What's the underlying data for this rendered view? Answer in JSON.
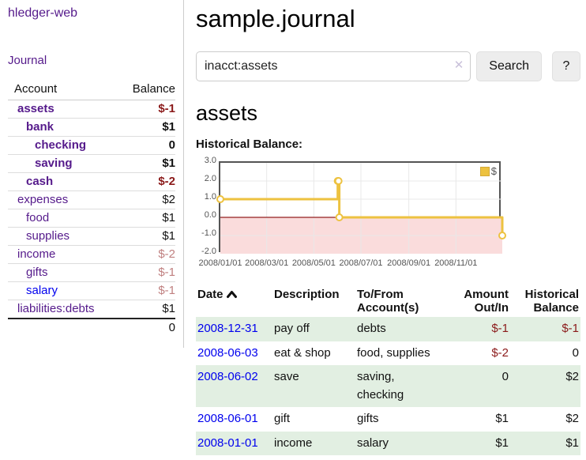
{
  "app": {
    "brand": "hledger-web",
    "nav_journal": "Journal"
  },
  "sidebar": {
    "columns": {
      "account": "Account",
      "balance": "Balance"
    },
    "accounts": [
      {
        "name": "assets",
        "depth": 1,
        "bold": true,
        "link_tone": "purple",
        "balance": "$-1",
        "balance_tone": "neg"
      },
      {
        "name": "bank",
        "depth": 2,
        "bold": true,
        "link_tone": "purple",
        "balance": "$1",
        "balance_tone": "pos"
      },
      {
        "name": "checking",
        "depth": 3,
        "bold": true,
        "link_tone": "purple",
        "balance": "0",
        "balance_tone": "pos"
      },
      {
        "name": "saving",
        "depth": 3,
        "bold": true,
        "link_tone": "purple",
        "balance": "$1",
        "balance_tone": "pos"
      },
      {
        "name": "cash",
        "depth": 2,
        "bold": true,
        "link_tone": "purple",
        "balance": "$-2",
        "balance_tone": "neg"
      },
      {
        "name": "expenses",
        "depth": 1,
        "bold": false,
        "link_tone": "purple",
        "balance": "$2",
        "balance_tone": "pos"
      },
      {
        "name": "food",
        "depth": 2,
        "bold": false,
        "link_tone": "purple",
        "balance": "$1",
        "balance_tone": "pos"
      },
      {
        "name": "supplies",
        "depth": 2,
        "bold": false,
        "link_tone": "purple",
        "balance": "$1",
        "balance_tone": "pos"
      },
      {
        "name": "income",
        "depth": 1,
        "bold": false,
        "link_tone": "purple",
        "balance": "$-2",
        "balance_tone": "neg-soft"
      },
      {
        "name": "gifts",
        "depth": 2,
        "bold": false,
        "link_tone": "purple",
        "balance": "$-1",
        "balance_tone": "neg-soft"
      },
      {
        "name": "salary",
        "depth": 2,
        "bold": false,
        "link_tone": "blue",
        "balance": "$-1",
        "balance_tone": "neg-soft"
      },
      {
        "name": "liabilities:debts",
        "depth": 1,
        "bold": false,
        "link_tone": "purple",
        "balance": "$1",
        "balance_tone": "pos"
      }
    ],
    "total": "0"
  },
  "main": {
    "title": "sample.journal",
    "search": {
      "value": "inacct:assets",
      "clear_icon": "✕",
      "button_label": "Search",
      "help_label": "?"
    },
    "account_heading": "assets",
    "chart_label": "Historical Balance:"
  },
  "chart_data": {
    "type": "line",
    "title": "Historical Balance",
    "step": true,
    "x_range_days": [
      0,
      365
    ],
    "ylim": [
      -2,
      3
    ],
    "y_ticks": [
      3.0,
      2.0,
      1.0,
      0.0,
      -1.0,
      -2.0
    ],
    "x_ticks": [
      {
        "label": "2008/01/01",
        "day": 0
      },
      {
        "label": "2008/03/01",
        "day": 60
      },
      {
        "label": "2008/05/01",
        "day": 121
      },
      {
        "label": "2008/07/01",
        "day": 182
      },
      {
        "label": "2008/09/01",
        "day": 244
      },
      {
        "label": "2008/11/01",
        "day": 305
      }
    ],
    "series": [
      {
        "name": "$",
        "color": "#edc240",
        "points": [
          {
            "date": "2008-01-01",
            "day": 0,
            "value": 1
          },
          {
            "date": "2008-06-01",
            "day": 152,
            "value": 2
          },
          {
            "date": "2008-06-02",
            "day": 153,
            "value": 2
          },
          {
            "date": "2008-06-03",
            "day": 154,
            "value": 0
          },
          {
            "date": "2008-12-31",
            "day": 365,
            "value": -1
          }
        ]
      }
    ],
    "colors": {
      "grid": "#e8e8e8",
      "border": "#545454",
      "tick_text": "#545454",
      "negative_region": "#fadcdc",
      "zero_line": "#941f1f",
      "marker_fill": "#ffffff"
    },
    "legend": {
      "label": "$",
      "position": "top-right"
    }
  },
  "register": {
    "headers": {
      "date": "Date",
      "description": "Description",
      "accounts": "To/From Account(s)",
      "amount": "Amount Out/In",
      "balance": "Historical Balance"
    },
    "rows": [
      {
        "date": "2008-12-31",
        "description": "pay off",
        "accounts": "debts",
        "amount": "$-1",
        "amount_tone": "neg",
        "balance": "$-1",
        "balance_tone": "neg"
      },
      {
        "date": "2008-06-03",
        "description": "eat & shop",
        "accounts": "food, supplies",
        "amount": "$-2",
        "amount_tone": "neg",
        "balance": "0",
        "balance_tone": "pos"
      },
      {
        "date": "2008-06-02",
        "description": "save",
        "accounts": "saving, checking",
        "amount": "0",
        "amount_tone": "pos",
        "balance": "$2",
        "balance_tone": "pos"
      },
      {
        "date": "2008-06-01",
        "description": "gift",
        "accounts": "gifts",
        "amount": "$1",
        "amount_tone": "pos",
        "balance": "$2",
        "balance_tone": "pos"
      },
      {
        "date": "2008-01-01",
        "description": "income",
        "accounts": "salary",
        "amount": "$1",
        "amount_tone": "pos",
        "balance": "$1",
        "balance_tone": "pos"
      }
    ]
  }
}
